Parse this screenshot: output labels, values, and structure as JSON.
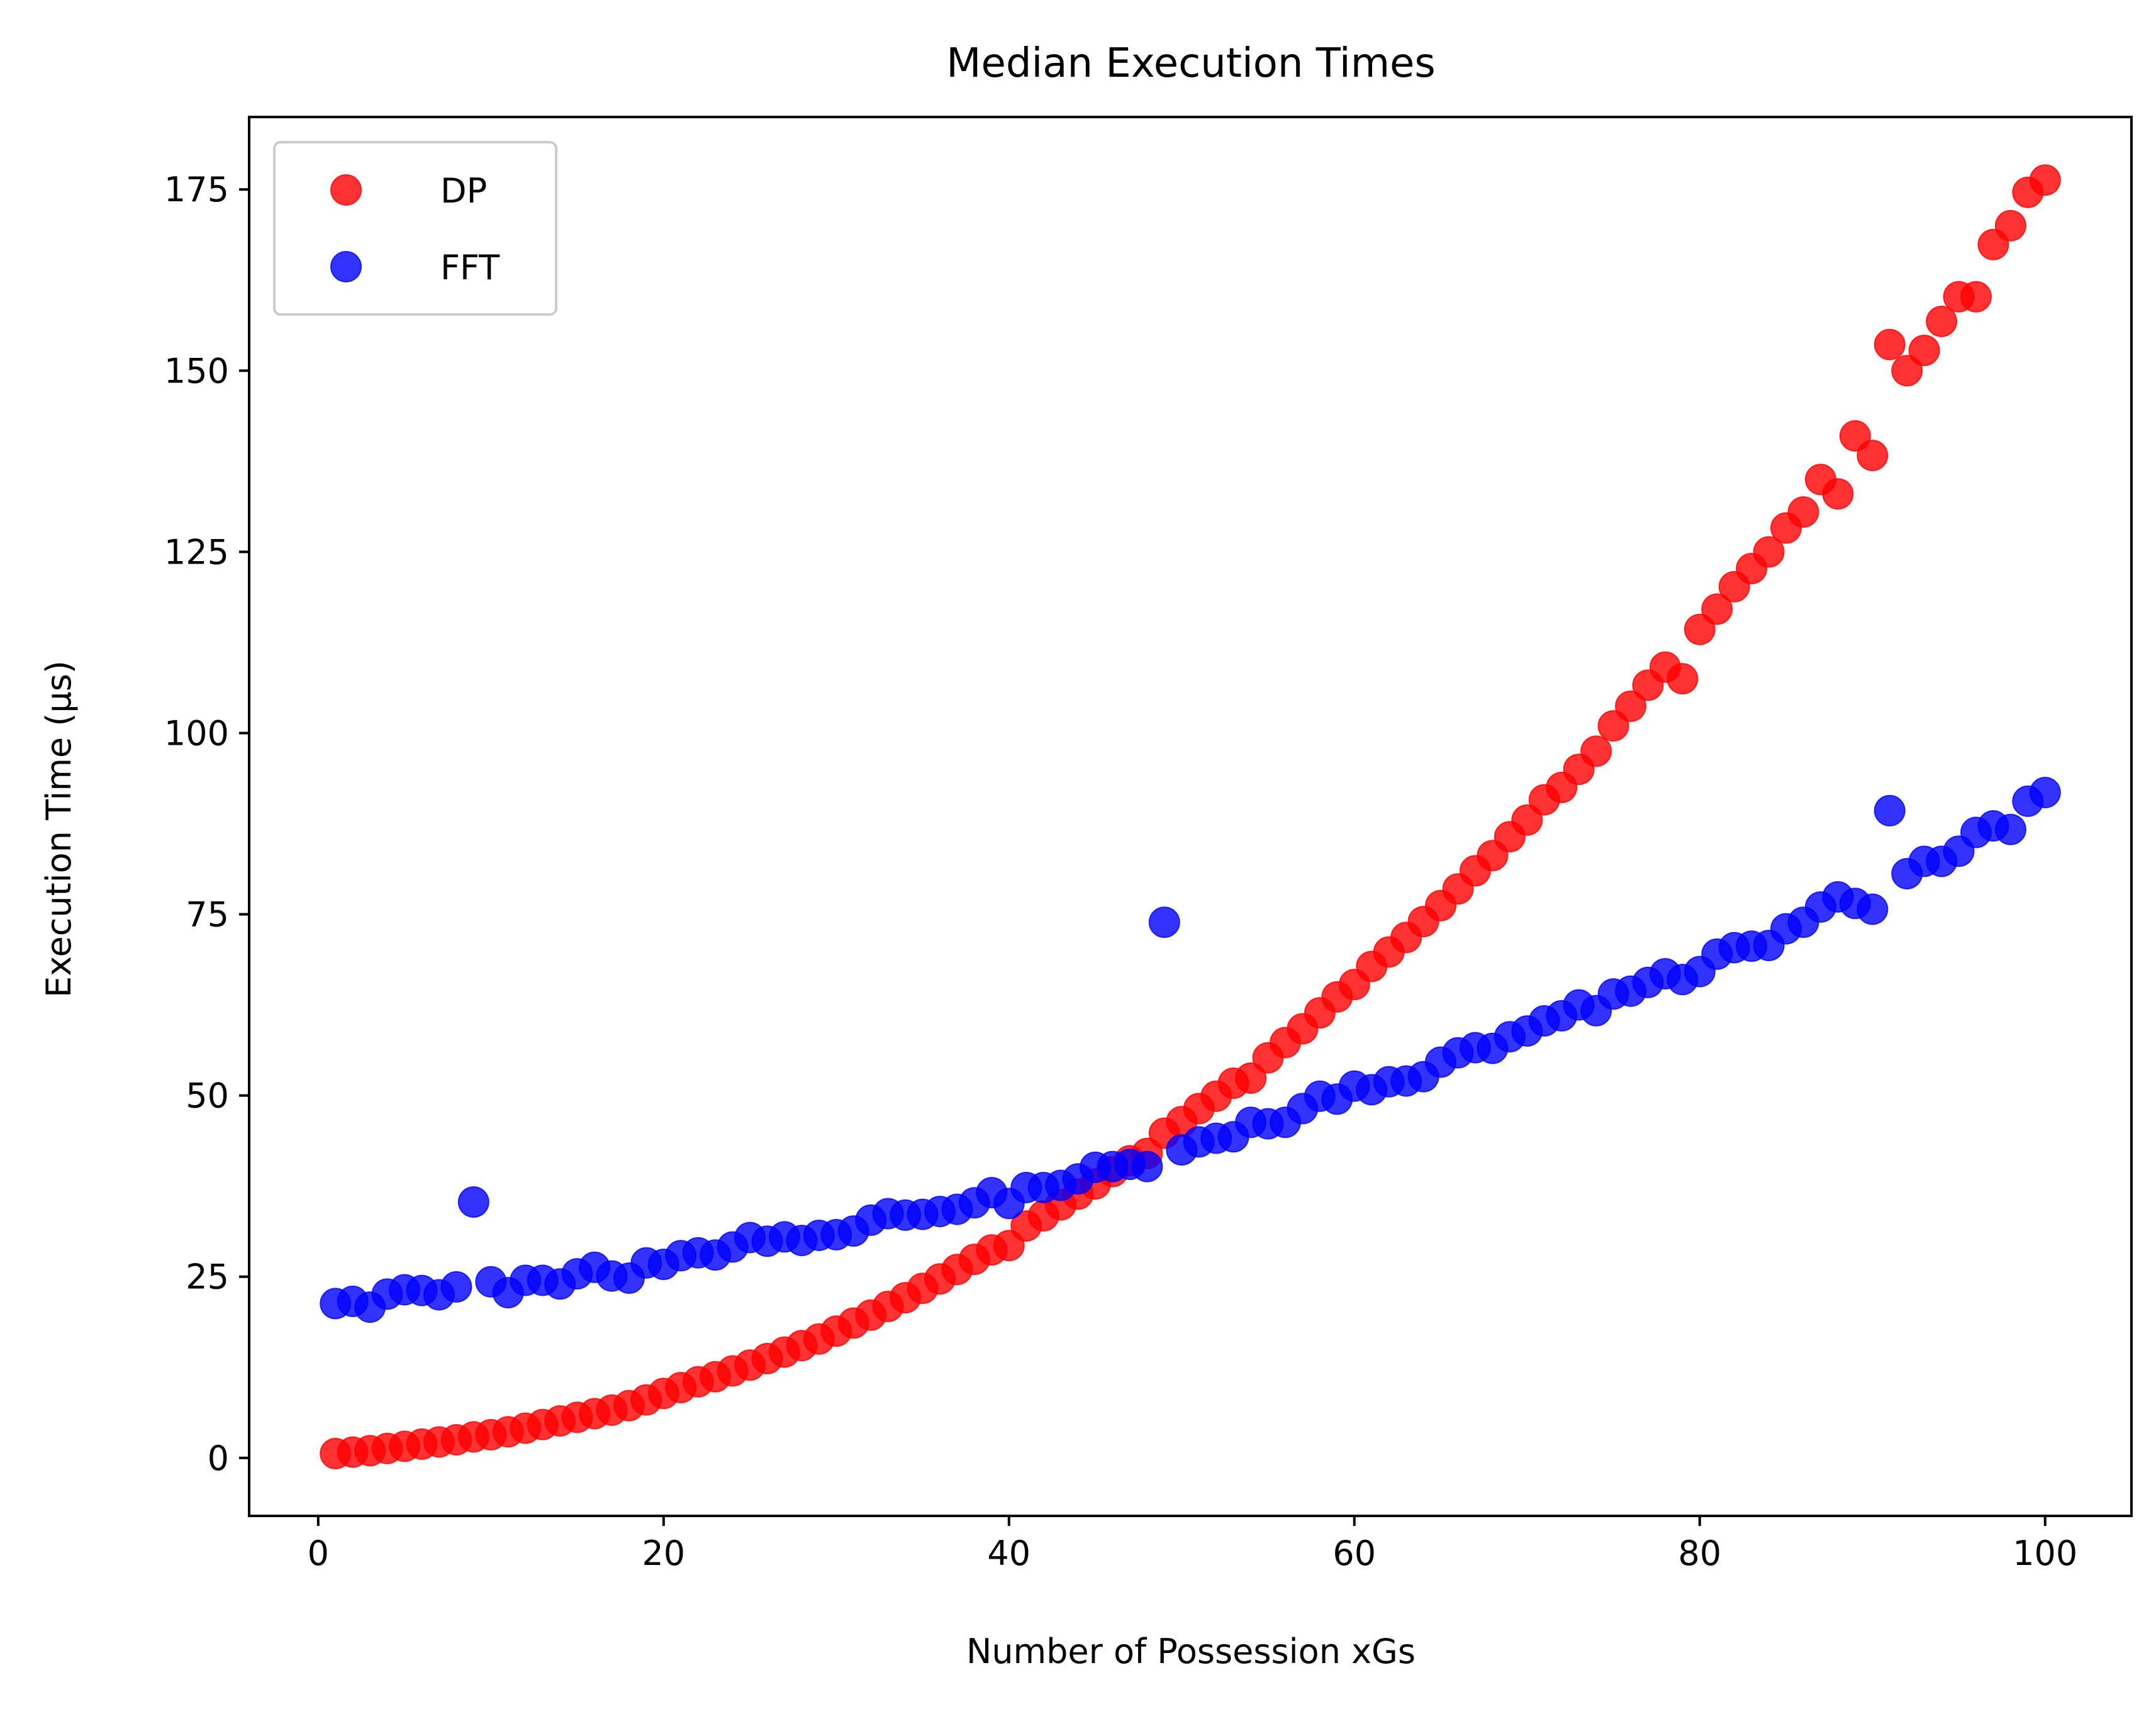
{
  "chart_data": {
    "type": "scatter",
    "title": "Median Execution Times",
    "xlabel": "Number of Possession xGs",
    "ylabel": "Execution Time (µs)",
    "xlim": [
      -4,
      105
    ],
    "ylim": [
      -8,
      185
    ],
    "xticks": [
      0,
      20,
      40,
      60,
      80,
      100
    ],
    "yticks": [
      0,
      25,
      50,
      75,
      100,
      125,
      150,
      175
    ],
    "legend_position": "upper-left",
    "grid": false,
    "series": [
      {
        "name": "DP",
        "color": "#ff0000",
        "x": [
          1,
          2,
          3,
          4,
          5,
          6,
          7,
          8,
          9,
          10,
          11,
          12,
          13,
          14,
          15,
          16,
          17,
          18,
          19,
          20,
          21,
          22,
          23,
          24,
          25,
          26,
          27,
          28,
          29,
          30,
          31,
          32,
          33,
          34,
          35,
          36,
          37,
          38,
          39,
          40,
          41,
          42,
          43,
          44,
          45,
          46,
          47,
          48,
          49,
          50,
          51,
          52,
          53,
          54,
          55,
          56,
          57,
          58,
          59,
          60,
          61,
          62,
          63,
          64,
          65,
          66,
          67,
          68,
          69,
          70,
          71,
          72,
          73,
          74,
          75,
          76,
          77,
          78,
          79,
          80,
          81,
          82,
          83,
          84,
          85,
          86,
          87,
          88,
          89,
          90,
          91,
          92,
          93,
          94,
          95,
          96,
          97,
          98,
          99,
          100
        ],
        "y": [
          0.6,
          0.8,
          1.0,
          1.3,
          1.6,
          1.9,
          2.2,
          2.5,
          2.9,
          3.2,
          3.6,
          4.1,
          4.6,
          5.1,
          5.6,
          6.1,
          6.6,
          7.2,
          8.0,
          8.9,
          9.7,
          10.5,
          11.2,
          12.0,
          12.8,
          13.7,
          14.6,
          15.5,
          16.4,
          17.5,
          18.6,
          19.7,
          20.9,
          22.1,
          23.4,
          24.7,
          26.0,
          27.4,
          28.7,
          29.3,
          32.0,
          33.4,
          34.9,
          36.4,
          37.8,
          39.5,
          41.0,
          42.0,
          44.8,
          46.4,
          48.2,
          49.9,
          51.7,
          52.4,
          55.2,
          57.3,
          59.2,
          61.4,
          63.6,
          65.3,
          67.8,
          69.8,
          71.8,
          74.0,
          76.2,
          78.5,
          81.0,
          83.1,
          85.7,
          88.0,
          90.8,
          92.5,
          95.0,
          97.5,
          101.0,
          103.7,
          106.6,
          109.1,
          107.5,
          114.3,
          117.1,
          120.2,
          122.7,
          125.0,
          128.3,
          130.5,
          135.0,
          133.0,
          141.0,
          138.3,
          153.6,
          150.0,
          152.8,
          156.8,
          160.2,
          160.2,
          167.4,
          170.0,
          174.6,
          176.3
        ]
      },
      {
        "name": "FFT",
        "color": "#0000ff",
        "x": [
          1,
          2,
          3,
          4,
          5,
          6,
          7,
          8,
          9,
          10,
          11,
          12,
          13,
          14,
          15,
          16,
          17,
          18,
          19,
          20,
          21,
          22,
          23,
          24,
          25,
          26,
          27,
          28,
          29,
          30,
          31,
          32,
          33,
          34,
          35,
          36,
          37,
          38,
          39,
          40,
          41,
          42,
          43,
          44,
          45,
          46,
          47,
          48,
          49,
          50,
          51,
          52,
          53,
          54,
          55,
          56,
          57,
          58,
          59,
          60,
          61,
          62,
          63,
          64,
          65,
          66,
          67,
          68,
          69,
          70,
          71,
          72,
          73,
          74,
          75,
          76,
          77,
          78,
          79,
          80,
          81,
          82,
          83,
          84,
          85,
          86,
          87,
          88,
          89,
          90,
          91,
          92,
          93,
          94,
          95,
          96,
          97,
          98,
          99,
          100
        ],
        "y": [
          21.3,
          21.6,
          20.8,
          22.6,
          23.2,
          23.1,
          22.5,
          23.6,
          35.3,
          24.3,
          22.8,
          24.5,
          24.5,
          24.0,
          25.4,
          26.3,
          25.1,
          24.8,
          26.9,
          26.7,
          27.9,
          28.3,
          28.0,
          29.1,
          30.4,
          29.9,
          30.5,
          30.0,
          30.7,
          30.8,
          31.3,
          32.8,
          33.7,
          33.5,
          33.6,
          34.0,
          34.3,
          35.2,
          36.6,
          35.1,
          37.3,
          37.3,
          37.6,
          38.5,
          40.1,
          40.2,
          40.5,
          40.2,
          73.9,
          42.5,
          43.6,
          44.1,
          44.3,
          46.3,
          46.1,
          46.3,
          48.2,
          49.9,
          49.5,
          51.3,
          50.8,
          51.9,
          52.0,
          52.6,
          54.6,
          55.9,
          56.6,
          56.5,
          58.1,
          58.9,
          60.3,
          61.0,
          62.5,
          61.7,
          64.0,
          64.4,
          65.6,
          66.8,
          66.0,
          67.1,
          69.5,
          70.4,
          70.6,
          70.7,
          73.0,
          73.9,
          76.0,
          77.4,
          76.5,
          75.7,
          89.3,
          80.6,
          82.3,
          82.3,
          83.7,
          86.3,
          87.2,
          86.7,
          90.6,
          91.8
        ]
      }
    ]
  }
}
